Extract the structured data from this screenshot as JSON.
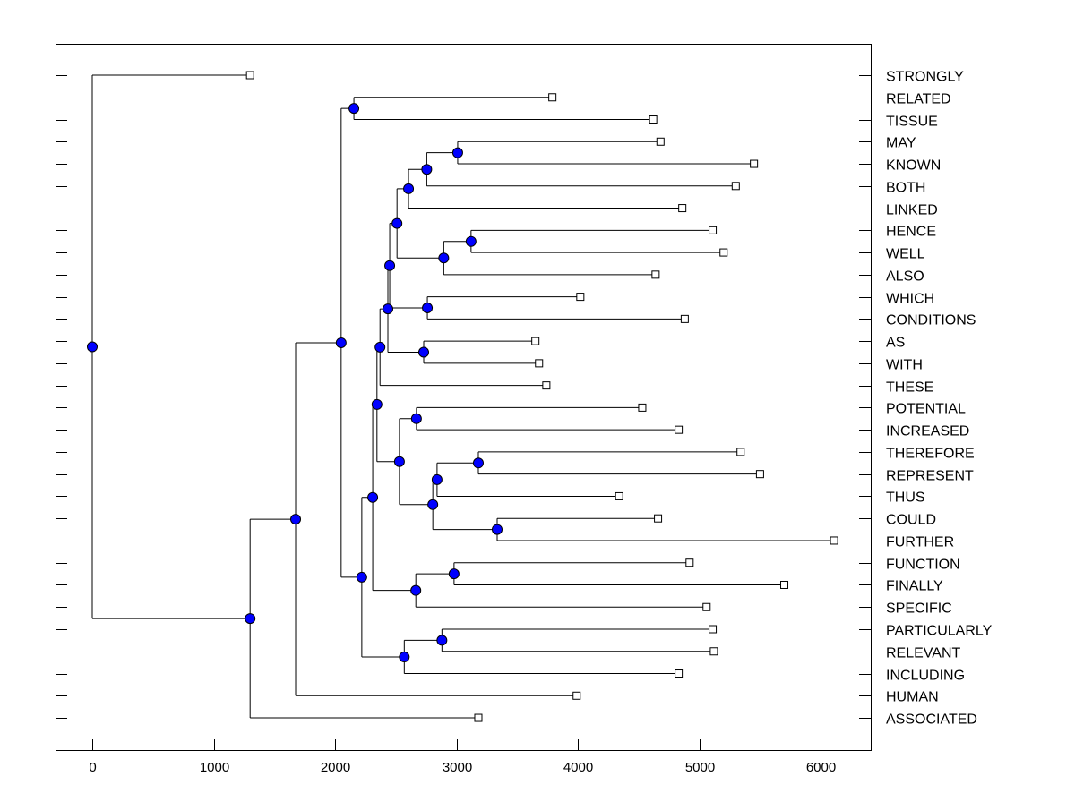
{
  "chart_data": {
    "type": "dendrogram",
    "orientation": "horizontal",
    "xlim": [
      -300,
      6450
    ],
    "xticks": [
      0,
      1000,
      2000,
      3000,
      4000,
      5000,
      6000
    ],
    "grid": false,
    "colors": {
      "node": "#0000ff",
      "line": "#000000",
      "leaf": "#ffffff"
    },
    "leaves": [
      {
        "label": "STRONGLY",
        "height": 1300
      },
      {
        "label": "RELATED",
        "height": 3790
      },
      {
        "label": "TISSUE",
        "height": 4620
      },
      {
        "label": "MAY",
        "height": 4680
      },
      {
        "label": "KNOWN",
        "height": 5450
      },
      {
        "label": "BOTH",
        "height": 5300
      },
      {
        "label": "LINKED",
        "height": 4860
      },
      {
        "label": "HENCE",
        "height": 5110
      },
      {
        "label": "WELL",
        "height": 5200
      },
      {
        "label": "ALSO",
        "height": 4640
      },
      {
        "label": "WHICH",
        "height": 4020
      },
      {
        "label": "CONDITIONS",
        "height": 4880
      },
      {
        "label": "AS",
        "height": 3650
      },
      {
        "label": "WITH",
        "height": 3680
      },
      {
        "label": "THESE",
        "height": 3740
      },
      {
        "label": "POTENTIAL",
        "height": 4530
      },
      {
        "label": "INCREASED",
        "height": 4830
      },
      {
        "label": "THEREFORE",
        "height": 5340
      },
      {
        "label": "REPRESENT",
        "height": 5500
      },
      {
        "label": "THUS",
        "height": 4340
      },
      {
        "label": "COULD",
        "height": 4660
      },
      {
        "label": "FURTHER",
        "height": 6110
      },
      {
        "label": "FUNCTION",
        "height": 4920
      },
      {
        "label": "FINALLY",
        "height": 5700
      },
      {
        "label": "SPECIFIC",
        "height": 5060
      },
      {
        "label": "PARTICULARLY",
        "height": 5110
      },
      {
        "label": "RELEVANT",
        "height": 5120
      },
      {
        "label": "INCLUDING",
        "height": 4830
      },
      {
        "label": "HUMAN",
        "height": 3990
      },
      {
        "label": "ASSOCIATED",
        "height": 3180
      }
    ],
    "tree": {
      "height": 0,
      "children": [
        "STRONGLY",
        {
          "height": 1300,
          "children": [
            {
              "height": 1675,
              "children": [
                {
                  "height": 2050,
                  "children": [
                    {
                      "height": 2155,
                      "children": [
                        "RELATED",
                        "TISSUE"
                      ]
                    },
                    {
                      "height": 2220,
                      "children": [
                        {
                          "height": 2310,
                          "children": [
                            {
                              "height": 2345,
                              "children": [
                                {
                                  "height": 2370,
                                  "children": [
                                    {
                                      "height": 2435,
                                      "children": [
                                        {
                                          "height": 2450,
                                          "children": [
                                            {
                                              "height": 2510,
                                              "children": [
                                                {
                                                  "height": 2605,
                                                  "children": [
                                                    {
                                                      "height": 2755,
                                                      "children": [
                                                        {
                                                          "height": 3010,
                                                          "children": [
                                                            "MAY",
                                                            "KNOWN"
                                                          ]
                                                        },
                                                        "BOTH"
                                                      ]
                                                    },
                                                    "LINKED"
                                                  ]
                                                },
                                                {
                                                  "height": 2895,
                                                  "children": [
                                                    {
                                                      "height": 3120,
                                                      "children": [
                                                        "HENCE",
                                                        "WELL"
                                                      ]
                                                    },
                                                    "ALSO"
                                                  ]
                                                }
                                              ]
                                            },
                                            {
                                              "height": 2760,
                                              "children": [
                                                "WHICH",
                                                "CONDITIONS"
                                              ]
                                            }
                                          ]
                                        },
                                        {
                                          "height": 2730,
                                          "children": [
                                            "AS",
                                            "WITH"
                                          ]
                                        }
                                      ]
                                    },
                                    "THESE"
                                  ]
                                },
                                {
                                  "height": 2530,
                                  "children": [
                                    {
                                      "height": 2670,
                                      "children": [
                                        "POTENTIAL",
                                        "INCREASED"
                                      ]
                                    },
                                    {
                                      "height": 2805,
                                      "children": [
                                        {
                                          "height": 2840,
                                          "children": [
                                            {
                                              "height": 3180,
                                              "children": [
                                                "THEREFORE",
                                                "REPRESENT"
                                              ]
                                            },
                                            "THUS"
                                          ]
                                        },
                                        {
                                          "height": 3335,
                                          "children": [
                                            "COULD",
                                            "FURTHER"
                                          ]
                                        }
                                      ]
                                    }
                                  ]
                                }
                              ]
                            },
                            {
                              "height": 2665,
                              "children": [
                                {
                                  "height": 2980,
                                  "children": [
                                    "FUNCTION",
                                    "FINALLY"
                                  ]
                                },
                                "SPECIFIC"
                              ]
                            }
                          ]
                        },
                        {
                          "height": 2570,
                          "children": [
                            {
                              "height": 2880,
                              "children": [
                                "PARTICULARLY",
                                "RELEVANT"
                              ]
                            },
                            "INCLUDING"
                          ]
                        }
                      ]
                    }
                  ]
                },
                "HUMAN"
              ]
            },
            "ASSOCIATED"
          ]
        }
      ]
    }
  }
}
